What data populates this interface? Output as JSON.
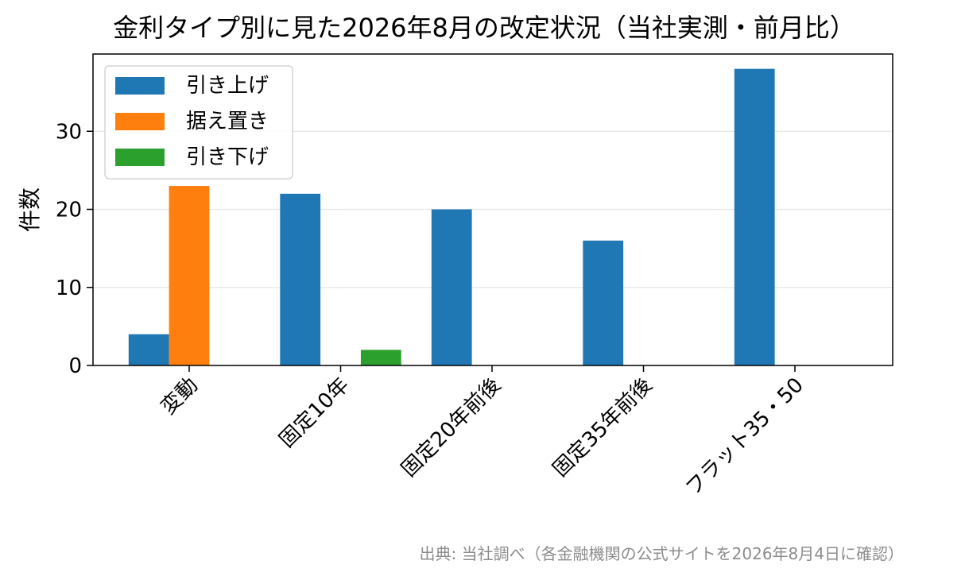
{
  "chart_data": {
    "type": "bar",
    "title": "金利タイプ別に見た2026年8月の改定状況（当社実測・前月比）",
    "xlabel": "",
    "ylabel": "件数",
    "categories": [
      "変動",
      "固定10年",
      "固定20年前後",
      "固定35年前後",
      "フラット35・50"
    ],
    "series": [
      {
        "name": "引き上げ",
        "values": [
          4,
          22,
          20,
          16,
          38
        ],
        "color": "#1f77b4"
      },
      {
        "name": "据え置き",
        "values": [
          23,
          0,
          0,
          0,
          0
        ],
        "color": "#ff7f0e"
      },
      {
        "name": "引き下げ",
        "values": [
          0,
          2,
          0,
          0,
          0
        ],
        "color": "#2ca02c"
      }
    ],
    "ylim": [
      0,
      39.9
    ],
    "yticks": [
      0,
      10,
      20,
      30
    ],
    "grid": "horizontal",
    "legend_position": "upper-left",
    "source_note": "出典: 当社調べ（各金融機関の公式サイトを2026年8月4日に確認）"
  }
}
